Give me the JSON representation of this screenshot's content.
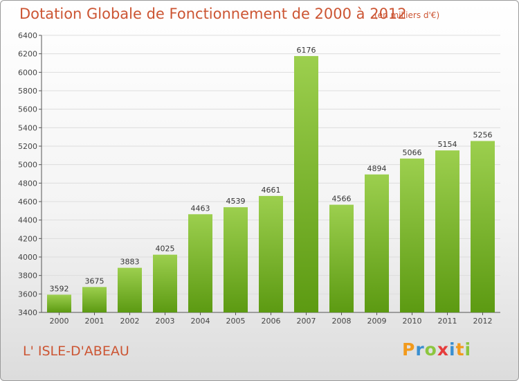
{
  "header": {
    "title": "Dotation Globale de Fonctionnement de 2000 à 2012",
    "subtitle": "(en milliers d'€)"
  },
  "footer": {
    "commune": "L' ISLE-D'ABEAU",
    "logo_text": "Proxiti"
  },
  "colors": {
    "title": "#cc5533",
    "bar_top": "#9ccf4e",
    "bar_bottom": "#5c9a12",
    "grid": "#dddddd"
  },
  "chart_data": {
    "type": "bar",
    "title": "Dotation Globale de Fonctionnement de 2000 à 2012",
    "subtitle": "(en milliers d'€)",
    "categories": [
      "2000",
      "2001",
      "2002",
      "2003",
      "2004",
      "2005",
      "2006",
      "2007",
      "2008",
      "2009",
      "2010",
      "2011",
      "2012"
    ],
    "values": [
      3592,
      3675,
      3883,
      4025,
      4463,
      4539,
      4661,
      6176,
      4566,
      4894,
      5066,
      5154,
      5256
    ],
    "data_labels": true,
    "ylim": [
      3400,
      6400
    ],
    "yticks": [
      3400,
      3600,
      3800,
      4000,
      4200,
      4400,
      4600,
      4800,
      5000,
      5200,
      5400,
      5600,
      5800,
      6000,
      6200,
      6400
    ],
    "grid": true,
    "xlabel": "",
    "ylabel": ""
  }
}
